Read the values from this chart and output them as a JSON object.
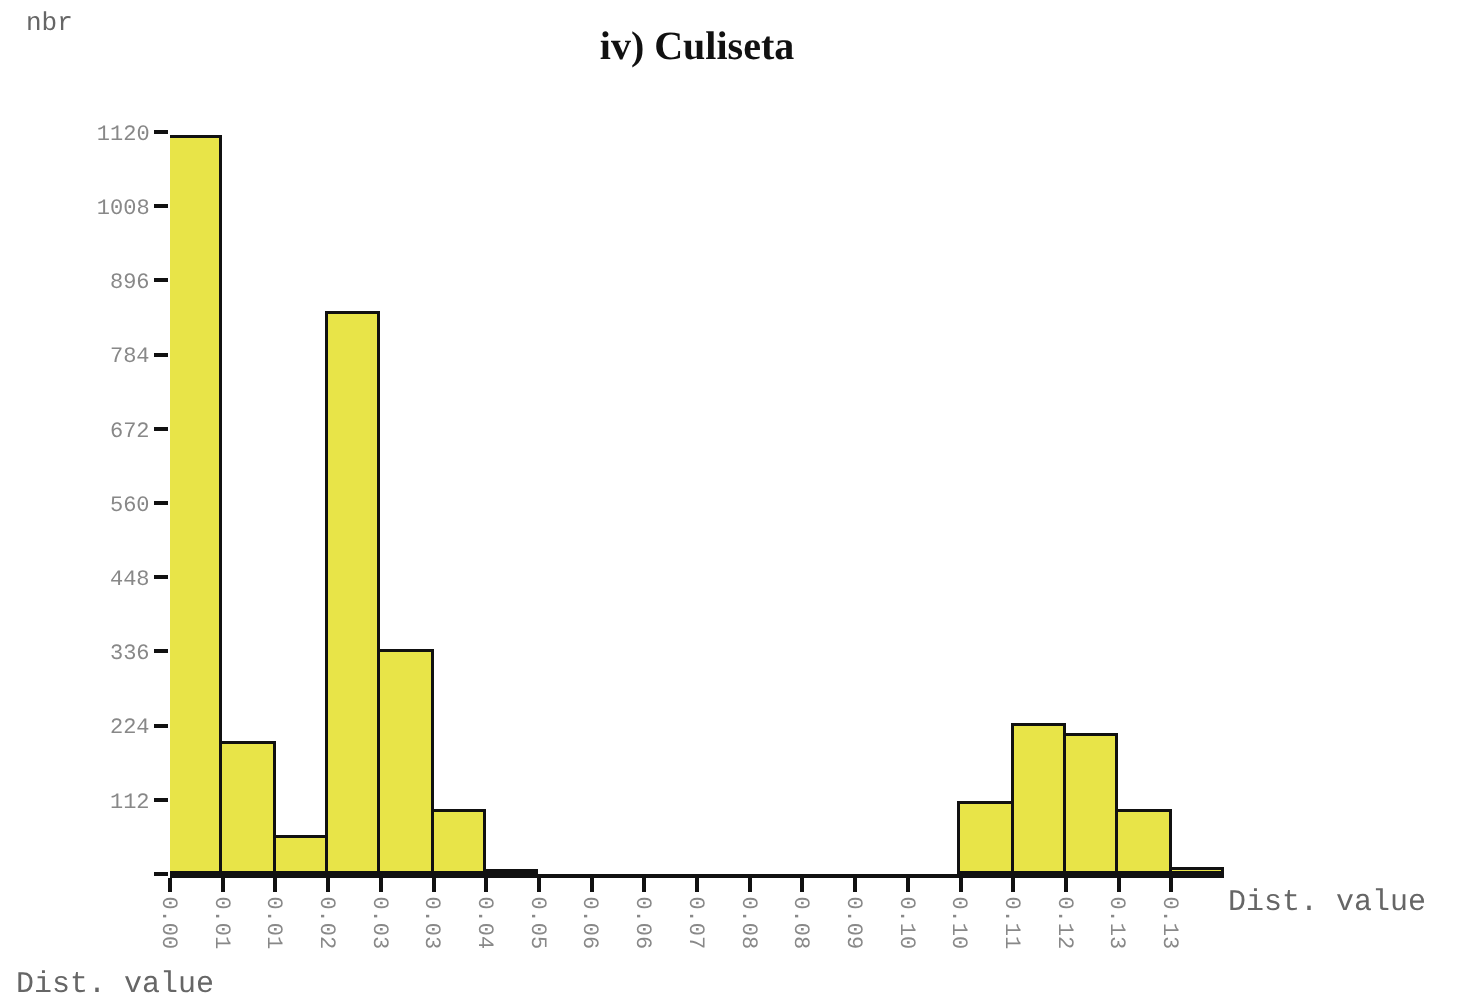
{
  "chart_data": {
    "type": "histogram",
    "title": "iv) Culiseta",
    "xlabel": "Dist. value",
    "ylabel": "nbr",
    "annotations": [
      "Dist. value"
    ],
    "bins": [
      0,
      0.00695,
      0.0139,
      0.02085,
      0.0278,
      0.03475,
      0.0417,
      0.04865,
      0.0556,
      0.06255,
      0.0695,
      0.07645,
      0.0834,
      0.09035,
      0.0973,
      0.10425,
      0.1112,
      0.11815,
      0.1251,
      0.13205,
      0.139
    ],
    "values": [
      1110,
      196,
      54,
      846,
      335,
      94,
      3,
      0,
      0,
      0,
      0,
      0,
      0,
      0,
      0,
      106,
      224,
      208,
      94,
      5
    ],
    "color": "#e8e448",
    "xlim": [
      0,
      0.139
    ],
    "xticks": [
      {
        "value": 0,
        "label": "0.00"
      },
      {
        "value": 0.00695,
        "label": "0.01"
      },
      {
        "value": 0.0139,
        "label": "0.01"
      },
      {
        "value": 0.02085,
        "label": "0.02"
      },
      {
        "value": 0.0278,
        "label": "0.03"
      },
      {
        "value": 0.03475,
        "label": "0.03"
      },
      {
        "value": 0.0417,
        "label": "0.04"
      },
      {
        "value": 0.04865,
        "label": "0.05"
      },
      {
        "value": 0.0556,
        "label": "0.06"
      },
      {
        "value": 0.06255,
        "label": "0.06"
      },
      {
        "value": 0.0695,
        "label": "0.07"
      },
      {
        "value": 0.07645,
        "label": "0.08"
      },
      {
        "value": 0.0834,
        "label": "0.08"
      },
      {
        "value": 0.09035,
        "label": "0.09"
      },
      {
        "value": 0.0973,
        "label": "0.10"
      },
      {
        "value": 0.10425,
        "label": "0.10"
      },
      {
        "value": 0.1112,
        "label": "0.11"
      },
      {
        "value": 0.11815,
        "label": "0.12"
      },
      {
        "value": 0.1251,
        "label": "0.13"
      },
      {
        "value": 0.13205,
        "label": "0.13"
      }
    ],
    "ylim": [
      0,
      1120
    ],
    "yticks": [
      {
        "value": 0,
        "label": null
      },
      112,
      224,
      336,
      448,
      560,
      672,
      784,
      896,
      1008,
      1120
    ],
    "grid": false
  }
}
